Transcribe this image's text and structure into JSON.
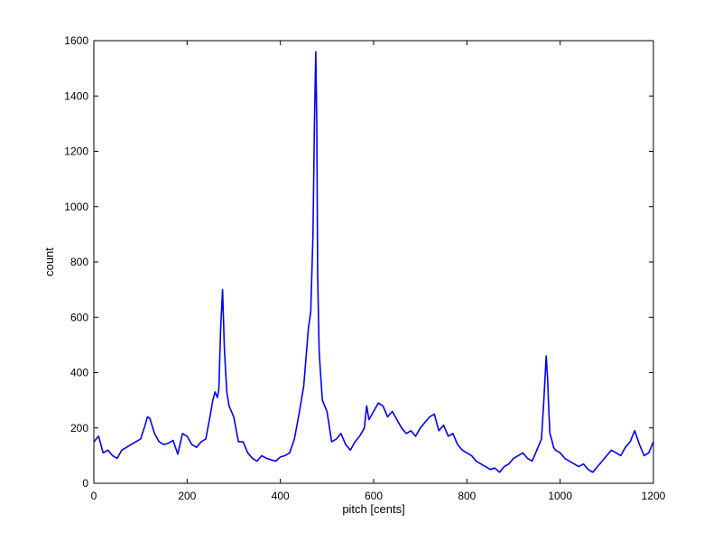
{
  "chart_data": {
    "type": "line",
    "title": "",
    "xlabel": "pitch [cents]",
    "ylabel": "count",
    "xlim": [
      0,
      1200
    ],
    "ylim": [
      0,
      1600
    ],
    "xticks": [
      0,
      200,
      400,
      600,
      800,
      1000,
      1200
    ],
    "yticks": [
      0,
      200,
      400,
      600,
      800,
      1000,
      1200,
      1400,
      1600
    ],
    "grid": false,
    "legend": "none",
    "series_color": "#0000ff",
    "series": [
      {
        "x": [
          0,
          10,
          20,
          30,
          40,
          50,
          60,
          70,
          80,
          90,
          100,
          110,
          115,
          120,
          130,
          140,
          150,
          160,
          170,
          180,
          190,
          200,
          210,
          220,
          230,
          240,
          250,
          255,
          260,
          265,
          268,
          272,
          276,
          280,
          285,
          290,
          300,
          310,
          320,
          330,
          340,
          350,
          360,
          370,
          380,
          390,
          400,
          410,
          420,
          430,
          440,
          450,
          460,
          465,
          470,
          473,
          476,
          478,
          480,
          483,
          486,
          490,
          500,
          510,
          520,
          530,
          540,
          550,
          560,
          570,
          580,
          585,
          590,
          600,
          610,
          620,
          630,
          640,
          650,
          660,
          670,
          680,
          690,
          700,
          710,
          720,
          730,
          740,
          750,
          760,
          770,
          780,
          790,
          800,
          810,
          820,
          830,
          840,
          850,
          860,
          870,
          880,
          890,
          900,
          910,
          920,
          930,
          940,
          950,
          960,
          965,
          970,
          973,
          976,
          978,
          980,
          983,
          986,
          990,
          1000,
          1010,
          1020,
          1030,
          1040,
          1050,
          1060,
          1070,
          1080,
          1090,
          1100,
          1110,
          1120,
          1130,
          1140,
          1150,
          1160,
          1170,
          1180,
          1190,
          1200
        ],
        "values": [
          150,
          170,
          110,
          120,
          100,
          90,
          120,
          130,
          140,
          150,
          160,
          210,
          240,
          235,
          180,
          150,
          140,
          145,
          155,
          105,
          180,
          170,
          140,
          130,
          150,
          160,
          250,
          300,
          330,
          310,
          340,
          560,
          700,
          480,
          330,
          280,
          240,
          150,
          150,
          110,
          90,
          80,
          100,
          90,
          85,
          80,
          95,
          100,
          110,
          160,
          250,
          350,
          560,
          620,
          900,
          1300,
          1560,
          1300,
          750,
          480,
          400,
          300,
          260,
          150,
          160,
          180,
          140,
          120,
          150,
          170,
          200,
          280,
          230,
          260,
          290,
          280,
          240,
          260,
          230,
          200,
          180,
          190,
          170,
          200,
          220,
          240,
          250,
          190,
          210,
          170,
          180,
          140,
          120,
          110,
          100,
          80,
          70,
          60,
          50,
          55,
          40,
          60,
          70,
          90,
          100,
          110,
          90,
          80,
          120,
          160,
          300,
          460,
          380,
          250,
          180,
          170,
          150,
          130,
          120,
          110,
          90,
          80,
          70,
          60,
          70,
          50,
          40,
          60,
          80,
          100,
          120,
          110,
          100,
          130,
          150,
          190,
          140,
          100,
          110,
          150
        ]
      }
    ]
  }
}
